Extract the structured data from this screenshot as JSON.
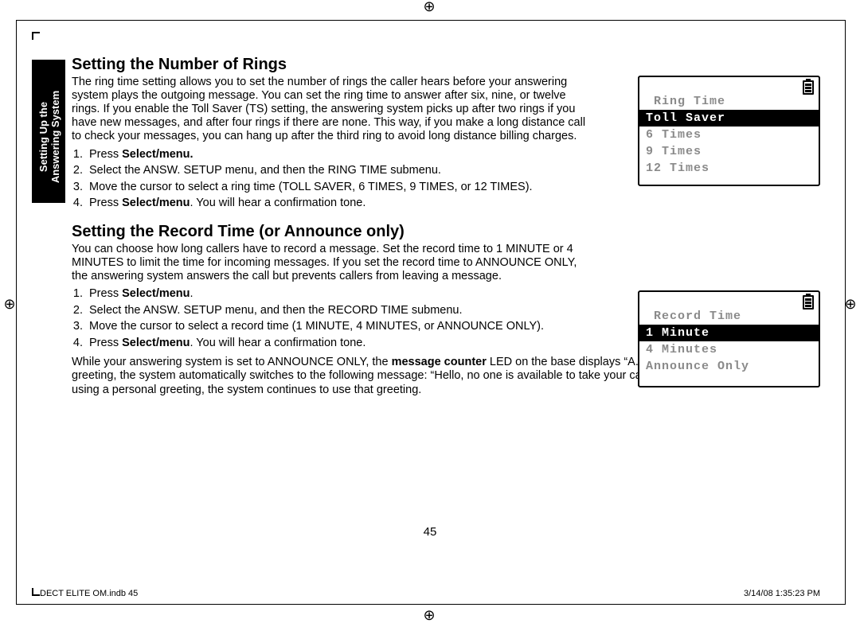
{
  "side_tab": {
    "line1": "Setting Up the",
    "line2": "Answering System"
  },
  "section1": {
    "heading": "Setting the Number of Rings",
    "para": "The ring time setting allows you to set the number of rings the caller hears before your answering system plays the outgoing message. You can set the ring time to answer after six, nine, or twelve rings. If you enable the Toll Saver (TS) setting, the answering system picks up after two rings if you have new messages, and after four rings if there are none. This way, if you make a long distance call to check your messages, you can hang up after the third ring to avoid long distance billing charges.",
    "steps": [
      "Press <b>Select/menu.</b>",
      "Select the ANSW. SETUP menu, and then the RING TIME submenu.",
      "Move the cursor to select a ring time (TOLL SAVER, 6 TIMES, 9 TIMES, or 12 TIMES).",
      "Press <b>Select/menu</b>. You will hear a confirmation tone."
    ]
  },
  "section2": {
    "heading": "Setting the Record Time (or Announce only)",
    "para": "You can choose how long callers have to record a message. Set the record time to 1 MINUTE or 4 MINUTES to limit the time for incoming messages. If you set the record time to ANNOUNCE ONLY, the answering system answers the call but prevents callers from leaving a message.",
    "steps": [
      "Press <b>Select/menu</b>.",
      "Select the ANSW. SETUP menu, and then the RECORD TIME submenu.",
      "Move the cursor to select a record time (1 MINUTE, 4 MINUTES, or ANNOUNCE ONLY).",
      "Press <b>Select/menu</b>. You will hear a confirmation tone."
    ],
    "note": "While your answering system is set to ANNOUNCE ONLY, the <b>message counter</b> LED on the base displays “A.” If you are using the prerecorded greeting, the system automatically switches to the following message: “Hello, no one is available to take your call. Please call again.” If you are using a personal greeting, the system continues to use that greeting."
  },
  "lcd1": {
    "title": "Ring Time",
    "items": [
      {
        "label": "Toll Saver",
        "selected": true
      },
      {
        "label": "6 Times",
        "selected": false
      },
      {
        "label": "9 Times",
        "selected": false
      },
      {
        "label": "12 Times",
        "selected": false
      }
    ]
  },
  "lcd2": {
    "title": "Record Time",
    "items": [
      {
        "label": "1 Minute",
        "selected": true
      },
      {
        "label": "4 Minutes",
        "selected": false
      },
      {
        "label": "Announce Only",
        "selected": false
      }
    ]
  },
  "page_number": "45",
  "footer": {
    "left": "DECT ELITE OM.indb   45",
    "right": "3/14/08   1:35:23 PM"
  }
}
